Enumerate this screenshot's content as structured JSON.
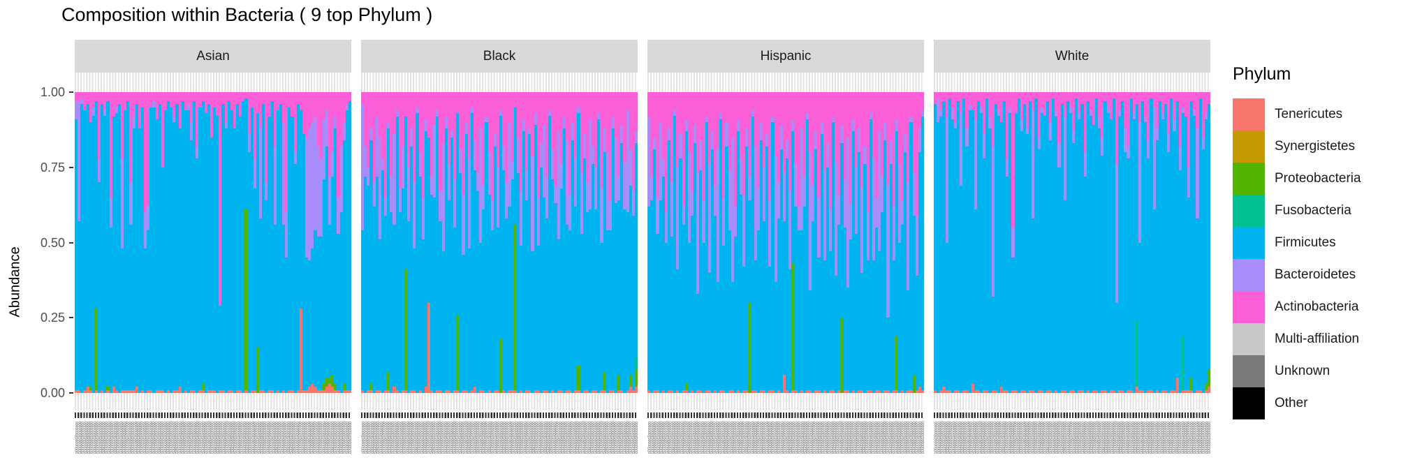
{
  "title": "Composition within Bacteria ( 9 top Phylum )",
  "y_axis": {
    "title": "Abundance",
    "ticks": [
      "1.00",
      "0.75",
      "0.50",
      "0.25",
      "0.00"
    ]
  },
  "x_axis": {
    "sample_label_texture": "0000000((00000))((0",
    "labels_legible": false
  },
  "legend": {
    "title": "Phylum",
    "items": [
      {
        "key": "tenericutes",
        "label": "Tenericutes",
        "color": "#F8766D"
      },
      {
        "key": "synergistetes",
        "label": "Synergistetes",
        "color": "#C49A00"
      },
      {
        "key": "proteobacteria",
        "label": "Proteobacteria",
        "color": "#53B400"
      },
      {
        "key": "fusobacteria",
        "label": "Fusobacteria",
        "color": "#00C094"
      },
      {
        "key": "firmicutes",
        "label": "Firmicutes",
        "color": "#00B4EF"
      },
      {
        "key": "bacteroidetes",
        "label": "Bacteroidetes",
        "color": "#A78CFA"
      },
      {
        "key": "actinobacteria",
        "label": "Actinobacteria",
        "color": "#FB5FD8"
      },
      {
        "key": "multi_affiliation",
        "label": "Multi-affiliation",
        "color": "#C8C8C8"
      },
      {
        "key": "unknown",
        "label": "Unknown",
        "color": "#7A7A7A"
      },
      {
        "key": "other",
        "label": "Other",
        "color": "#000000"
      }
    ]
  },
  "colors": {
    "strip_bg": "#D9D9D9",
    "panel_gridline": "#E2E2E2",
    "axis_text": "#4D4D4D",
    "tick_mark": "#333333"
  },
  "chart_data": {
    "type": "bar",
    "stacked": true,
    "normalized": true,
    "title": "Composition within Bacteria ( 9 top Phylum )",
    "xlabel": "",
    "ylabel": "Abundance",
    "ylim": [
      0,
      1
    ],
    "y_tick_values": [
      0.0,
      0.25,
      0.5,
      0.75,
      1.0
    ],
    "grid": "vertical-per-sample",
    "legend_position": "right",
    "facet_variable_values": [
      "Asian",
      "Black",
      "Hispanic",
      "White"
    ],
    "series_order_bottom_to_top": [
      "Tenericutes",
      "Synergistetes",
      "Proteobacteria",
      "Fusobacteria",
      "Firmicutes",
      "Bacteroidetes",
      "Actinobacteria",
      "Multi-affiliation",
      "Unknown",
      "Other"
    ],
    "bar_encoding": "each bar = 'a,b,g,t[,f]' percent of Actinobacteria, Bacteroidetes, Proteobacteria, Tenericutes, Fusobacteria; Firmicutes = 100 minus sum; per-sample values estimated from pixels",
    "facets": [
      {
        "label": "Asian",
        "bars": "3,6,0,1;3,40,0,1;2,2,0,0;6,0,0,1;4,0,0,2;10,0,1,1;5,3,0,0;3,0,27,1;22,8,0,0;4,0,0,1;6,2,0,0;3,0,1,1;35,10,0,0;8,0,0,2;5,2,0,1;4,0,0,0;22,30,0,1;6,0,0,1;3,0,0,1;30,14,0,1;8,4,0,1;4,0,0,2;12,0,0,0;5,0,0,1;40,12,0,0;38,8,0,1;5,0,0,1;3,2,0,0;9,0,0,1;4,0,0,1;25,0,0,1;6,0,0,0;3,0,0,1;5,0,0,0;8,2,0,1;4,0,0,1;12,0,0,2;3,0,0,0;6,0,0,1;4,2,0,0;10,6,0,1;3,0,0,1;18,4,0,0;5,0,0,1;3,0,2,1;7,0,0,0;4,0,0,1;15,0,0,1;5,0,0,1;8,0,0,0;71,0,0,1;4,0,0,1;10,2,0,0;3,0,0,1;6,0,0,1;12,0,0,0;4,0,0,1;8,0,0,1;3,0,0,0;2,0,60,1;14,6,0,0;5,0,0,1;22,10,0,1;7,0,15,0;12,30,0,1;4,0,0,1;30,6,0,0;8,0,0,1;3,0,0,1;18,26,0,0;6,0,0,1;4,0,0,0;10,34,0,1;40,15,0,0;5,0,0,1;8,0,0,1;20,4,0,0;4,0,0,1;6,0,0,28;14,0,0,1;15,40,0,1;12,44,0,2;10,42,0,3;8,38,0,2;18,30,0,1;22,26,0,1;9,20,2,1;6,12,3,2;28,16,2,3;20,8,4,2;8,4,2,1;35,12,0,1;18,22,0,0;10,6,2,1;4,2,0,1;3,0,0,1"
      },
      {
        "label": "Black",
        "bars": "4,42,0,1;18,10,0,0;25,6,0,1;12,4,2,1;30,8,0,0;8,20,0,1;15,34,0,1;22,4,0,0;35,6,0,1;10,2,6,1;28,12,0,0;14,30,0,2;6,2,0,1;32,8,0,0;18,14,0,1;8,0,40,1;25,18,0,0;12,6,0,1;30,22,0,1;5,2,0,0;20,8,0,1;35,14,0,0;9,4,0,2;15,0,0,30;28,6,0,1;11,24,0,0;6,2,0,1;33,10,0,1;17,36,0,0;8,4,0,1;24,12,0,1;13,2,0,0;29,16,0,1;7,0,25,1;19,8,0,0;34,20,0,1;10,4,0,1;22,30,0,0;5,2,0,1;16,10,0,2;27,6,0,0;12,38,0,1;31,8,0,1;8,2,0,0;20,14,0,1;36,10,0,0;14,4,0,1;25,20,0,1;6,2,18,0;18,8,0,1;30,12,0,0;10,28,0,1;23,6,0,1;5,0,55,1;15,12,0,0;33,18,0,1;9,4,0,0;26,10,0,1;12,2,0,1;21,32,0,0;7,4,0,1;35,16,0,1;17,8,0,0;11,24,0,1;28,14,0,1;6,2,0,0;19,10,0,1;31,6,0,0;13,36,0,1;24,8,0,1;8,4,0,0;16,28,0,1;34,12,0,1;10,6,0,0;22,16,0,1;5,2,8,1;27,20,0,0;14,8,0,1;30,10,0,1;9,30,0,0;18,6,0,1;25,14,0,1;7,2,0,0;32,18,0,1;12,8,6,1;20,26,0,0;36,10,0,1;8,4,0,1;15,22,0,0;28,8,5,1;11,6,0,1;23,16,0,0;6,34,0,1;19,12,4,2;33,8,0,1;13,4,6,2,4"
      },
      {
        "label": "Hispanic",
        "bars": "8,30,0,1;28,8,0,0;15,4,0,1;35,12,0,1;10,26,0,0;22,6,0,1;40,10,0,0;12,4,0,1;30,18,0,1;6,2,0,0;25,34,0,1;14,8,0,0;38,6,0,1;9,4,2,1;20,30,0,0;33,8,0,1;11,6,0,0;27,40,0,1;16,10,0,1;36,14,0,0;8,2,0,1;24,36,0,1;13,6,0,0;31,10,0,1;19,44,0,0;7,2,0,1;35,16,0,1;10,8,0,0;26,20,0,1;15,48,0,1;38,10,0,0;9,4,0,1;22,12,0,0;34,24,0,1;12,6,0,1;28,8,30,0;6,2,0,1;18,38,0,1;32,14,0,0;10,6,0,1;25,18,0,1;14,4,0,0;36,22,0,1;8,2,0,1;21,42,0,0;30,12,0,1;11,8,0,0;27,16,0,6;16,6,0,1;33,26,0,0;9,4,42,1;24,14,0,1;38,8,0,0;12,34,0,1;28,10,0,0;7,2,0,1;20,46,0,1;31,12,0,0;13,6,0,1;35,20,0,1;10,4,0,0;26,30,0,1;17,8,0,0;39,14,0,1;8,2,0,1;23,38,0,0;34,10,0,1;11,6,25,0;29,16,0,1;15,50,0,1;37,12,0,0;9,4,0,1;25,22,0,0;12,8,0,1;32,28,0,1;18,6,0,0;40,16,0,1;7,2,0,1;22,34,0,0;35,10,0,1;13,40,0,1;28,12,0,0;10,6,0,1;31,44,0,1;16,8,0,0;38,18,0,1;9,4,18,1;24,26,0,0;36,8,0,1;14,6,0,0;30,36,0,1;8,2,0,1;27,14,6,0;41,20,0,1;12,8,0,2;6,2,0,1"
      },
      {
        "label": "White",
        "bars": "4,0,0,1;2,8,0,0;6,2,0,1;3,0,0,2;8,42,0,1;2,0,0,1;5,4,0,0;10,2,0,1;3,0,0,1;7,24,0,0;2,0,0,1;12,6,0,1;4,2,0,0;6,0,0,3;9,30,0,1;3,0,0,1;5,2,0,0;14,8,0,1;2,0,0,1;8,4,0,0;18,50,0,1;4,0,0,1;6,2,0,0;10,0,0,2;3,0,0,1;22,6,0,1;5,2,0,0;45,10,0,1;7,0,0,1;2,0,0,0;9,4,0,1;4,0,0,1;12,2,0,0;3,0,0,1;6,36,0,1;2,0,0,0;15,4,0,1;5,2,0,1;8,0,0,0;3,0,0,1;10,6,0,1;2,0,0,0;6,2,0,1;17,8,0,0;4,0,0,1;8,28,0,1;3,0,0,0;5,2,0,1;13,4,0,1;2,0,0,0;7,2,0,1;4,0,0,1;20,8,0,0;3,0,0,1;6,2,0,0;11,0,0,1;2,0,0,1;8,4,0,0;15,6,0,1;3,0,0,1;5,2,0,0;9,0,0,1;2,0,0,1;24,46,0,0;6,2,0,1;3,0,0,1;12,8,0,0;18,4,0,1;2,0,0,1;7,2,0,0;4,0,0,2,22;10,40,0,1;3,0,0,1;8,2,0,0;16,6,0,1;2,0,0,1;5,34,0,0;12,4,0,1;3,0,0,0;7,2,0,1;4,0,0,1;14,6,0,0;2,0,0,1;9,4,0,1;3,0,0,5;18,8,0,0;5,2,0,1,18;8,0,0,1;25,10,0,1;3,0,4,1;6,2,0,0;12,30,0,1;2,0,0,1;15,4,0,0;7,2,2,1;4,0,6,2"
      }
    ]
  }
}
